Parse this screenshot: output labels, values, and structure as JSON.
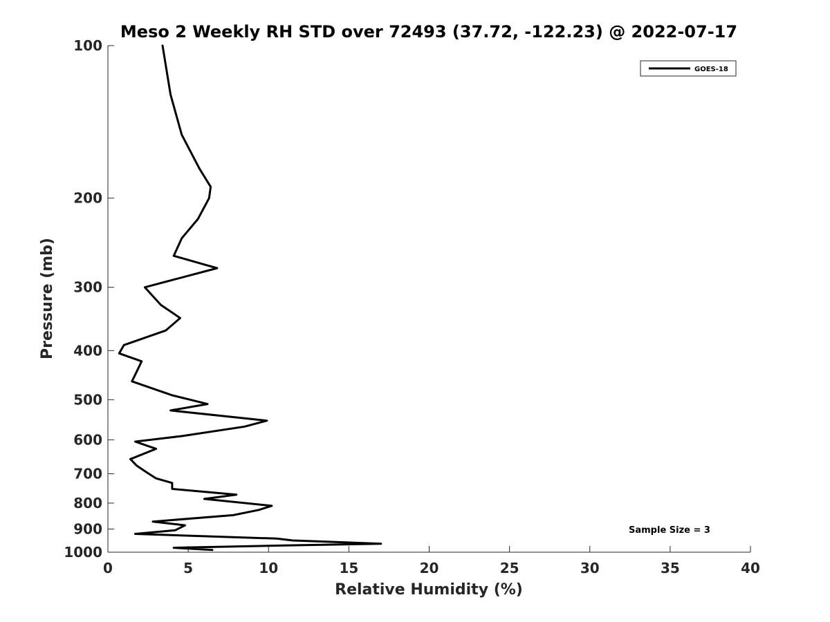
{
  "chart_data": {
    "type": "line",
    "title": "Meso 2 Weekly RH STD over 72493 (37.72, -122.23) @ 2022-07-17",
    "xlabel": "Relative Humidity (%)",
    "ylabel": "Pressure (mb)",
    "xlim": [
      0,
      40
    ],
    "ylim": [
      100,
      1000
    ],
    "y_scale": "log",
    "y_reversed": true,
    "x_ticks": [
      0,
      5,
      10,
      15,
      20,
      25,
      30,
      35,
      40
    ],
    "y_ticks": [
      100,
      200,
      300,
      400,
      500,
      600,
      700,
      800,
      900,
      1000
    ],
    "grid": false,
    "legend_position": "top-right",
    "series": [
      {
        "name": "GOES-18",
        "color": "#000000",
        "points": [
          [
            3.4,
            100
          ],
          [
            3.9,
            125
          ],
          [
            4.6,
            150
          ],
          [
            5.7,
            175
          ],
          [
            6.4,
            190
          ],
          [
            6.3,
            200
          ],
          [
            5.6,
            220
          ],
          [
            4.6,
            240
          ],
          [
            4.1,
            260
          ],
          [
            6.8,
            275
          ],
          [
            2.3,
            300
          ],
          [
            3.3,
            325
          ],
          [
            4.5,
            345
          ],
          [
            3.6,
            365
          ],
          [
            1.0,
            390
          ],
          [
            0.7,
            405
          ],
          [
            2.1,
            420
          ],
          [
            1.5,
            460
          ],
          [
            4.0,
            490
          ],
          [
            6.2,
            510
          ],
          [
            3.9,
            525
          ],
          [
            9.9,
            550
          ],
          [
            8.5,
            565
          ],
          [
            4.6,
            590
          ],
          [
            1.7,
            605
          ],
          [
            3.0,
            625
          ],
          [
            1.4,
            655
          ],
          [
            1.8,
            675
          ],
          [
            2.4,
            695
          ],
          [
            3.0,
            715
          ],
          [
            4.0,
            730
          ],
          [
            4.0,
            750
          ],
          [
            8.0,
            770
          ],
          [
            6.0,
            785
          ],
          [
            10.2,
            810
          ],
          [
            9.4,
            825
          ],
          [
            7.8,
            845
          ],
          [
            2.8,
            870
          ],
          [
            4.8,
            885
          ],
          [
            4.2,
            905
          ],
          [
            1.7,
            920
          ],
          [
            10.5,
            940
          ],
          [
            11.5,
            948
          ],
          [
            17.0,
            962
          ],
          [
            11.0,
            970
          ],
          [
            4.1,
            980
          ],
          [
            6.5,
            990
          ]
        ]
      }
    ],
    "annotation": "Sample Size = 3"
  }
}
